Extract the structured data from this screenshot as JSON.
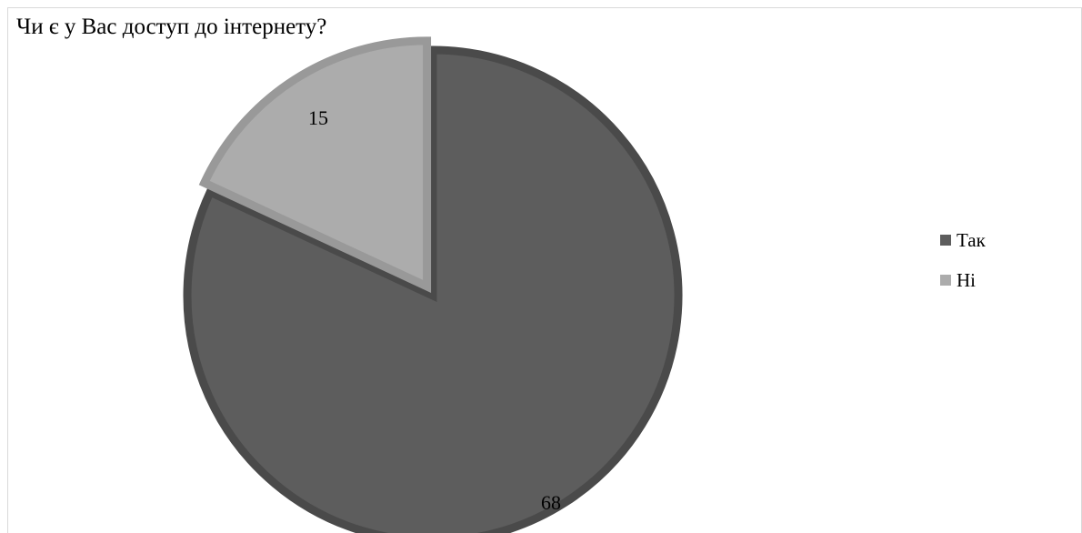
{
  "chart_data": {
    "type": "pie",
    "title": "Чи є у Вас доступ до інтернету?",
    "categories": [
      "Так",
      "Ні"
    ],
    "values": [
      68,
      15
    ],
    "colors": [
      "#5d5d5d",
      "#acacac"
    ],
    "edge_colors": [
      "#4a4a4a",
      "#999999"
    ],
    "data_labels": [
      "68",
      "15"
    ],
    "legend_position": "right",
    "start_angle_note": "first slice starts at 12 o'clock, clockwise"
  }
}
